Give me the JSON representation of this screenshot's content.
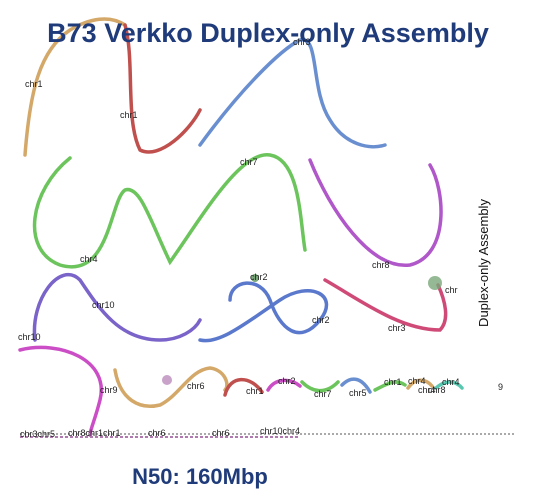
{
  "header": {
    "title": "B73 Verkko Duplex-only Assembly"
  },
  "side_label": "Duplex-only Assembly",
  "node_labels": [
    "chr1",
    "chr1",
    "chr3",
    "chr7",
    "chr4",
    "chr8",
    "chr2",
    "chr10",
    "chr10",
    "chr2",
    "chr3",
    "chr",
    "chr9",
    "chr6",
    "chr1",
    "chr2",
    "chr7",
    "chr5",
    "chr1",
    "chr4",
    "chr4",
    "chr8",
    "chr4",
    "9",
    "chr3chr5",
    "chr8chr1chr1",
    "chr6",
    "chr6",
    "chr10chr4"
  ],
  "footer": "N50: 160Mbp"
}
